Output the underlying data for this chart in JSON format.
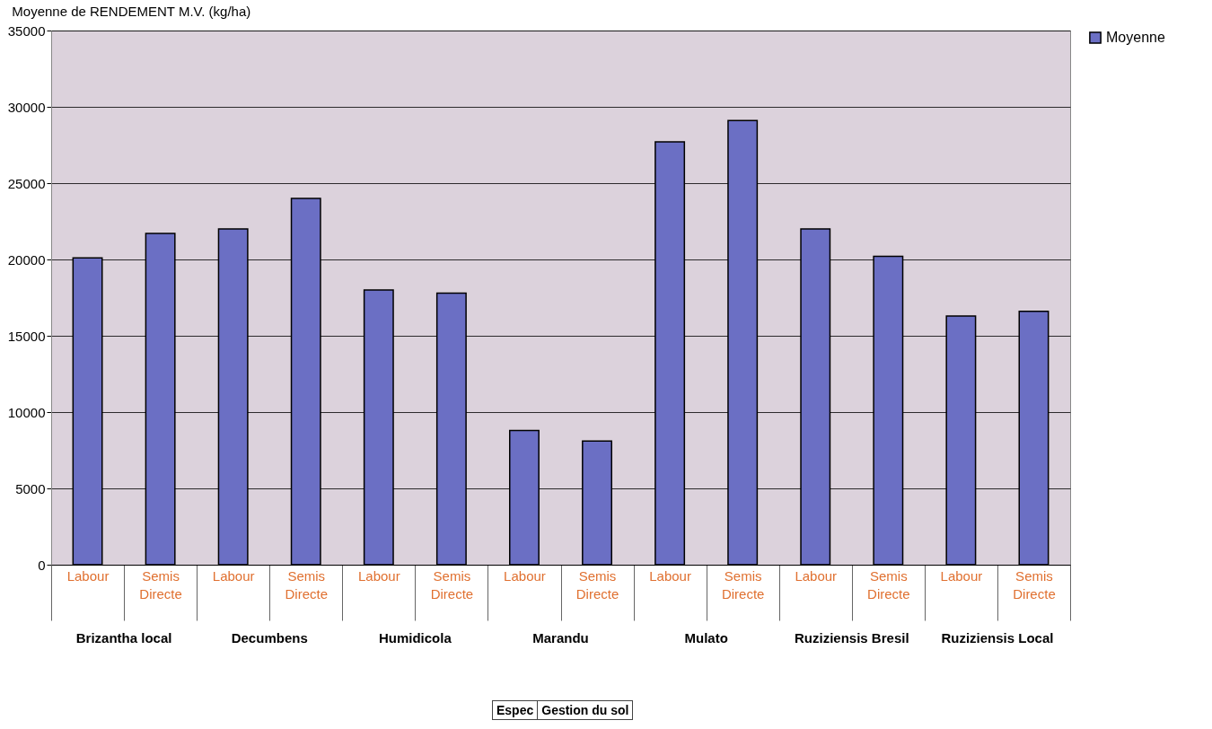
{
  "chart_data": {
    "type": "bar",
    "title": "Moyenne de RENDEMENT M.V. (kg/ha)",
    "categories": [
      "Labour",
      "Semis Directe",
      "Labour",
      "Semis Directe",
      "Labour",
      "Semis Directe",
      "Labour",
      "Semis Directe",
      "Labour",
      "Semis Directe",
      "Labour",
      "Semis Directe",
      "Labour",
      "Semis Directe"
    ],
    "series": [
      {
        "name": "Moyenne",
        "color": "#6b6fc4",
        "values": [
          20100,
          21700,
          22000,
          24000,
          18000,
          17800,
          8800,
          8100,
          27700,
          29100,
          22000,
          20200,
          16300,
          16600
        ]
      }
    ],
    "ylim": [
      0,
      35000
    ],
    "yticks": [
      0,
      5000,
      10000,
      15000,
      20000,
      25000,
      30000,
      35000
    ],
    "grid": "y",
    "legend": "right",
    "annotations": [
      "Brizantha local",
      "Decumbens",
      "Humidicola",
      "Marandu",
      "Mulato",
      "Ruziziensis Bresil",
      "Ruziziensis Local",
      "Espec",
      "Gestion du sol"
    ]
  }
}
